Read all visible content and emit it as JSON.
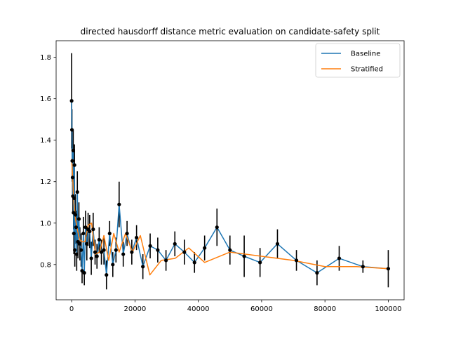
{
  "chart_data": {
    "type": "line",
    "title": "directed hausdorff distance metric evaluation on candidate-safety split",
    "xlabel": "",
    "ylabel": "",
    "xlim": [
      -4900,
      105000
    ],
    "ylim": [
      0.63,
      1.88
    ],
    "xticks": [
      0,
      20000,
      40000,
      60000,
      80000,
      100000
    ],
    "xtick_labels": [
      "0",
      "20000",
      "40000",
      "60000",
      "80000",
      "100000"
    ],
    "yticks": [
      0.8,
      1.0,
      1.2,
      1.4,
      1.6,
      1.8
    ],
    "ytick_labels": [
      "0.8",
      "1.0",
      "1.2",
      "1.4",
      "1.6",
      "1.8"
    ],
    "grid": false,
    "legend_position": "top-right",
    "series": [
      {
        "name": "Baseline",
        "color": "#1f77b4",
        "x": [
          0,
          100,
          200,
          300,
          400,
          500,
          600,
          700,
          800,
          900,
          1000,
          1200,
          1400,
          1600,
          1800,
          2000,
          2300,
          2600,
          3000,
          3300,
          3700,
          4000,
          4400,
          4800,
          5200,
          5700,
          6200,
          6800,
          7400,
          8000,
          8700,
          9400,
          10200,
          11000,
          12000,
          13000,
          14000,
          15000,
          16300,
          17500,
          19000,
          20500,
          22500,
          24800,
          27200,
          29800,
          32600,
          35600,
          38800,
          42000,
          45900,
          50000,
          54500,
          59500,
          65000,
          71000,
          77500,
          84500,
          92000,
          100000
        ],
        "y": [
          1.59,
          1.45,
          1.3,
          1.22,
          1.13,
          1.35,
          1.05,
          0.95,
          1.12,
          1.28,
          0.87,
          1.04,
          0.98,
          0.85,
          1.15,
          0.91,
          1.02,
          0.9,
          0.87,
          0.77,
          0.95,
          0.76,
          0.98,
          0.9,
          0.97,
          0.96,
          0.83,
          0.97,
          0.86,
          0.84,
          0.92,
          0.86,
          0.87,
          0.75,
          0.95,
          0.8,
          0.87,
          1.09,
          0.85,
          0.95,
          0.86,
          0.93,
          0.79,
          0.89,
          0.87,
          0.82,
          0.9,
          0.86,
          0.81,
          0.88,
          0.98,
          0.87,
          0.84,
          0.81,
          0.9,
          0.82,
          0.76,
          0.83,
          0.79,
          0.78
        ],
        "err": [
          0.23,
          0.1,
          0.1,
          0.08,
          0.08,
          0.1,
          0.08,
          0.1,
          0.1,
          0.1,
          0.08,
          0.1,
          0.08,
          0.08,
          0.1,
          0.08,
          0.08,
          0.08,
          0.08,
          0.06,
          0.08,
          0.06,
          0.08,
          0.08,
          0.08,
          0.08,
          0.08,
          0.08,
          0.06,
          0.06,
          0.06,
          0.06,
          0.07,
          0.07,
          0.06,
          0.06,
          0.06,
          0.11,
          0.06,
          0.06,
          0.06,
          0.06,
          0.06,
          0.06,
          0.06,
          0.05,
          0.06,
          0.06,
          0.05,
          0.06,
          0.09,
          0.07,
          0.1,
          0.07,
          0.07,
          0.05,
          0.06,
          0.06,
          0.03,
          0.09
        ]
      },
      {
        "name": "Stratified",
        "color": "#ff7f0e",
        "x": [
          0,
          300,
          700,
          1200,
          1800,
          2500,
          3300,
          4200,
          5200,
          6300,
          7500,
          8800,
          10200,
          11700,
          13300,
          15000,
          17000,
          19200,
          21700,
          24700,
          28300,
          32700,
          37000,
          42000,
          50000,
          60000,
          70000,
          80000,
          90000,
          100000
        ],
        "y": [
          1.31,
          1.23,
          1.1,
          1.02,
          0.97,
          0.92,
          0.91,
          0.91,
          0.99,
          1.0,
          0.85,
          0.86,
          0.94,
          0.82,
          0.95,
          0.86,
          0.95,
          0.86,
          0.94,
          0.75,
          0.82,
          0.83,
          0.88,
          0.81,
          0.86,
          0.84,
          0.82,
          0.79,
          0.79,
          0.78
        ]
      }
    ]
  }
}
